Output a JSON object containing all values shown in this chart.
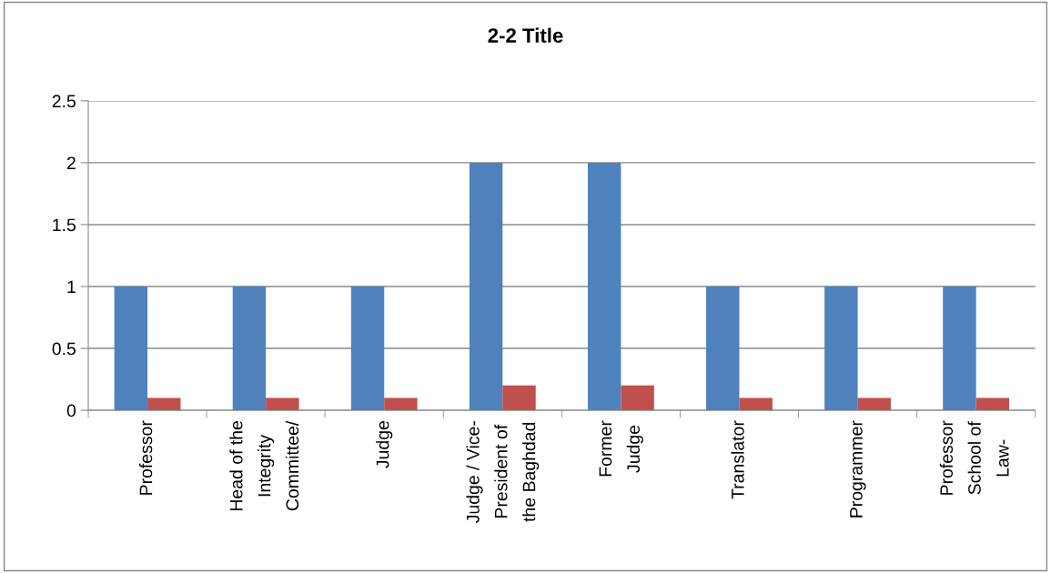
{
  "chart_data": {
    "type": "bar",
    "title": "2-2 Title",
    "categories": [
      "Professor",
      "Head of the\nIntegrity\nCommittee/",
      "Judge",
      "Judge / Vice-\nPresident of\nthe Baghdad",
      "Former\nJudge",
      "Translator",
      "Programmer",
      "Professor\nSchool of\nLaw-"
    ],
    "series": [
      {
        "color": "#4f81bd",
        "values": [
          1,
          1,
          1,
          2,
          2,
          1,
          1,
          1
        ]
      },
      {
        "color": "#c0504d",
        "values": [
          0.1,
          0.1,
          0.1,
          0.2,
          0.2,
          0.1,
          0.1,
          0.1
        ]
      }
    ],
    "ylim": [
      0,
      2.5
    ],
    "yticks": [
      0,
      0.5,
      1,
      1.5,
      2,
      2.5
    ],
    "grid": "y"
  }
}
